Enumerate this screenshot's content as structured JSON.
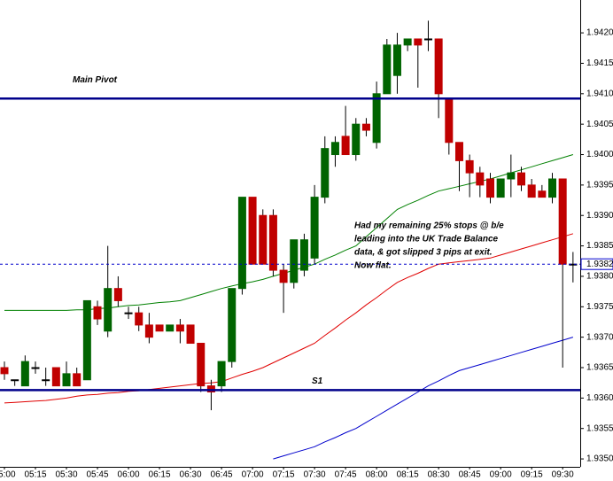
{
  "chart_data": {
    "type": "candlestick",
    "categories": [
      "05:00",
      null,
      null,
      "05:15",
      null,
      null,
      "05:30",
      null,
      null,
      "05:45",
      null,
      null,
      "06:00",
      null,
      null,
      "06:15",
      null,
      null,
      "06:30",
      null,
      null,
      "06:45",
      null,
      null,
      "07:00",
      null,
      null,
      "07:15",
      null,
      null,
      "07:30",
      null,
      null,
      "07:45",
      null,
      null,
      "08:00",
      null,
      null,
      "08:15",
      null,
      null,
      "08:30",
      null,
      null,
      "08:45",
      null,
      null,
      "09:00",
      null,
      null,
      "09:15",
      null,
      null,
      "09:30",
      null
    ],
    "open": [
      1.9365,
      1.9363,
      1.9362,
      1.9365,
      1.9363,
      1.9365,
      1.9362,
      1.9364,
      1.9363,
      1.9375,
      1.9371,
      1.9378,
      1.9374,
      1.9374,
      1.9372,
      1.9372,
      1.9371,
      1.9372,
      1.9372,
      1.9369,
      1.9362,
      1.9362,
      1.9366,
      1.9378,
      1.9393,
      1.939,
      1.939,
      1.9381,
      1.9379,
      1.9381,
      1.9383,
      1.9393,
      1.94,
      1.9403,
      1.94,
      1.9405,
      1.9402,
      1.941,
      1.9413,
      1.9418,
      1.9419,
      1.9419,
      1.9419,
      1.9409,
      1.9402,
      1.9399,
      1.9397,
      1.9396,
      1.9393,
      1.9396,
      1.9397,
      1.9395,
      1.9394,
      1.9393,
      1.9396,
      1.9382
    ],
    "high": [
      1.9366,
      1.9363,
      1.9367,
      1.9366,
      1.9365,
      1.9365,
      1.9366,
      1.9365,
      1.9376,
      1.9376,
      1.9385,
      1.938,
      1.9375,
      1.9375,
      1.9374,
      1.9372,
      1.9372,
      1.9373,
      1.9372,
      1.9369,
      1.9363,
      1.9366,
      1.9378,
      1.9393,
      1.9393,
      1.9391,
      1.9391,
      1.9382,
      1.9386,
      1.9387,
      1.9395,
      1.9403,
      1.9403,
      1.9408,
      1.9406,
      1.9406,
      1.9412,
      1.9419,
      1.942,
      1.9419,
      1.9419,
      1.9422,
      1.9419,
      1.9409,
      1.9402,
      1.94,
      1.9398,
      1.9397,
      1.9396,
      1.94,
      1.9398,
      1.9396,
      1.9395,
      1.9397,
      1.9396,
      1.9384
    ],
    "low": [
      1.9363,
      1.9362,
      1.9362,
      1.9364,
      1.9362,
      1.9362,
      1.9362,
      1.9362,
      1.9363,
      1.9372,
      1.937,
      1.9375,
      1.9373,
      1.9371,
      1.9369,
      1.9371,
      1.9371,
      1.9369,
      1.9369,
      1.9361,
      1.9358,
      1.9361,
      1.9365,
      1.9377,
      1.9382,
      1.9382,
      1.938,
      1.9374,
      1.9378,
      1.938,
      1.9382,
      1.9392,
      1.9398,
      1.94,
      1.9399,
      1.9403,
      1.9401,
      1.941,
      1.941,
      1.9417,
      1.9411,
      1.9417,
      1.9406,
      1.94,
      1.9394,
      1.9393,
      1.9393,
      1.9392,
      1.9393,
      1.9393,
      1.9394,
      1.9393,
      1.9393,
      1.9392,
      1.9365,
      1.9379
    ],
    "close": [
      1.9364,
      1.9363,
      1.9366,
      1.9365,
      1.9363,
      1.9362,
      1.9364,
      1.9362,
      1.9376,
      1.9373,
      1.9378,
      1.9376,
      1.9374,
      1.9372,
      1.937,
      1.9371,
      1.9372,
      1.9371,
      1.9369,
      1.9362,
      1.9361,
      1.9366,
      1.9378,
      1.9393,
      1.9382,
      1.9382,
      1.9381,
      1.9379,
      1.9386,
      1.9386,
      1.9393,
      1.9401,
      1.9402,
      1.94,
      1.9405,
      1.9404,
      1.941,
      1.9418,
      1.9418,
      1.9419,
      1.9418,
      1.9419,
      1.941,
      1.9402,
      1.9399,
      1.9397,
      1.9395,
      1.9393,
      1.9396,
      1.9397,
      1.9395,
      1.9393,
      1.9393,
      1.9396,
      1.9382,
      1.9382
    ],
    "up_color": "#006400",
    "down_color": "#c00000",
    "series": [
      {
        "color": "#008000",
        "values": [
          1.93744,
          1.93744,
          1.93744,
          1.93744,
          1.93744,
          1.93744,
          1.93744,
          1.93745,
          1.93745,
          1.93747,
          1.93748,
          1.9375,
          1.93752,
          1.93753,
          1.93755,
          1.93757,
          1.93758,
          1.9376,
          1.93765,
          1.9377,
          1.93775,
          1.9378,
          1.93784,
          1.93788,
          1.93791,
          1.93795,
          1.938,
          1.93805,
          1.9381,
          1.93815,
          1.9382,
          1.93828,
          1.93835,
          1.93843,
          1.9385,
          1.93865,
          1.9388,
          1.93895,
          1.9391,
          1.93918,
          1.93925,
          1.93933,
          1.9394,
          1.93944,
          1.93948,
          1.93952,
          1.93956,
          1.9396,
          1.93965,
          1.9397,
          1.93975,
          1.9398,
          1.93985,
          1.9399,
          1.93995,
          1.94
        ]
      },
      {
        "color": "#e00000",
        "values": [
          1.93592,
          1.93593,
          1.93594,
          1.93595,
          1.93596,
          1.93598,
          1.936,
          1.93603,
          1.93605,
          1.93606,
          1.93608,
          1.93609,
          1.93611,
          1.93612,
          1.93614,
          1.93616,
          1.93618,
          1.9362,
          1.93622,
          1.93624,
          1.93625,
          1.93627,
          1.93633,
          1.93639,
          1.93644,
          1.9365,
          1.93658,
          1.93666,
          1.93674,
          1.93682,
          1.9369,
          1.93703,
          1.93715,
          1.93728,
          1.9374,
          1.93753,
          1.93765,
          1.93778,
          1.9379,
          1.93798,
          1.93805,
          1.93813,
          1.9382,
          1.93822,
          1.93824,
          1.93826,
          1.93828,
          1.9383,
          1.93835,
          1.9384,
          1.93845,
          1.9385,
          1.93855,
          1.9386,
          1.93865,
          1.9387
        ]
      },
      {
        "color": "#0000cc",
        "values": [
          null,
          null,
          null,
          null,
          null,
          null,
          null,
          null,
          null,
          null,
          null,
          null,
          null,
          null,
          null,
          null,
          null,
          null,
          null,
          null,
          null,
          null,
          null,
          null,
          null,
          null,
          1.935,
          1.93505,
          1.9351,
          1.93515,
          1.9352,
          1.93528,
          1.93535,
          1.93543,
          1.9355,
          1.9356,
          1.9357,
          1.9358,
          1.9359,
          1.936,
          1.9361,
          1.9362,
          1.93628,
          1.93637,
          1.93645,
          1.9365,
          1.93655,
          1.9366,
          1.93665,
          1.9367,
          1.93675,
          1.9368,
          1.93685,
          1.9369,
          1.93695,
          1.937
        ]
      }
    ],
    "levels": [
      {
        "name": "Main Pivot",
        "value": 1.94092,
        "color": "#00008b"
      },
      {
        "name": "S1",
        "value": 1.93613,
        "color": "#00008b"
      }
    ],
    "price_line": 1.9382,
    "annotation": [
      "Had my remaining 25% stops @ b/e",
      "leading into the UK Trade Balance",
      "data, & got slipped 3 pips at exit.",
      "Now flat."
    ],
    "ylim": [
      1.93487,
      1.94254
    ],
    "yticks": [
      {
        "value": 1.935,
        "label": "1.9350"
      },
      1.9355,
      {
        "value": 1.936,
        "label": "1.9360"
      },
      1.9365,
      {
        "value": 1.937,
        "label": "1.9370"
      },
      1.9375,
      {
        "value": 1.938,
        "label": "1.9380"
      },
      1.9385,
      {
        "value": 1.939,
        "label": "1.9390"
      },
      1.9395,
      {
        "value": 1.94,
        "label": "1.9400"
      },
      1.9405,
      {
        "value": 1.941,
        "label": "1.9410"
      },
      1.9415,
      {
        "value": 1.942,
        "label": "1.9420"
      }
    ]
  }
}
